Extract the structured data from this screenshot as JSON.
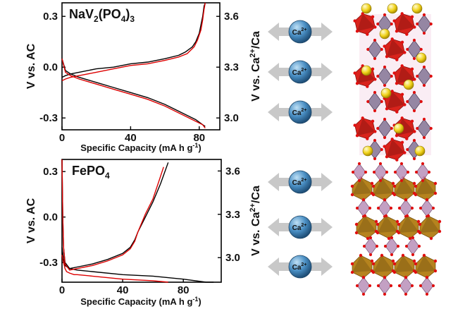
{
  "chart_data": [
    {
      "type": "line",
      "title": "NaV2(PO4)3",
      "title_parts": {
        "base": "NaV",
        "sub1": "2",
        "mid": "(PO",
        "sub2": "4",
        "end": ")",
        "sub3": "3"
      },
      "xlabel": "Specific Capacity (mA h g",
      "xlabel_sup": "-1",
      "xlabel_end": ")",
      "ylabel": "V vs. AC",
      "y2label": "V vs. Ca",
      "y2label_sup": "2+",
      "y2label_end": "/Ca",
      "xlim": [
        0,
        92
      ],
      "ylim": [
        -0.37,
        0.38
      ],
      "y2lim": [
        2.93,
        3.68
      ],
      "xticks": [
        "0",
        "40",
        "80"
      ],
      "xtick_values": [
        0,
        40,
        80
      ],
      "yticks": [
        "0.3",
        "0.0",
        "-0.3"
      ],
      "ytick_values": [
        0.3,
        0.0,
        -0.3
      ],
      "y2ticks": [
        "3.6",
        "3.3",
        "3.0"
      ],
      "y2tick_values": [
        3.6,
        3.3,
        3.0
      ],
      "series": [
        {
          "color": "#000000",
          "x": [
            0,
            2,
            5,
            10,
            20,
            30,
            40,
            50,
            60,
            68,
            72,
            76,
            78,
            80,
            81,
            82,
            82.8,
            83.5
          ],
          "y": [
            -0.06,
            -0.05,
            -0.04,
            -0.03,
            -0.01,
            0.0,
            0.02,
            0.03,
            0.05,
            0.07,
            0.09,
            0.12,
            0.15,
            0.2,
            0.25,
            0.3,
            0.36,
            0.38
          ]
        },
        {
          "color": "#000000",
          "x": [
            0,
            2,
            5,
            10,
            20,
            30,
            40,
            50,
            60,
            70,
            78,
            82,
            83.5
          ],
          "y": [
            0.05,
            -0.02,
            -0.04,
            -0.06,
            -0.09,
            -0.12,
            -0.15,
            -0.18,
            -0.22,
            -0.27,
            -0.31,
            -0.34,
            -0.35
          ]
        },
        {
          "color": "#dd0000",
          "x": [
            0,
            2,
            5,
            10,
            20,
            30,
            40,
            50,
            60,
            68,
            73,
            77,
            79,
            81,
            82,
            82.8,
            83.5
          ],
          "y": [
            -0.08,
            -0.07,
            -0.06,
            -0.05,
            -0.03,
            -0.01,
            0.01,
            0.02,
            0.04,
            0.06,
            0.08,
            0.12,
            0.16,
            0.22,
            0.28,
            0.34,
            0.38
          ]
        },
        {
          "color": "#dd0000",
          "x": [
            0,
            2,
            5,
            10,
            20,
            30,
            40,
            50,
            60,
            70,
            78,
            82,
            83.5
          ],
          "y": [
            0.05,
            -0.03,
            -0.05,
            -0.07,
            -0.1,
            -0.13,
            -0.16,
            -0.19,
            -0.23,
            -0.28,
            -0.32,
            -0.34,
            -0.36
          ]
        }
      ]
    },
    {
      "type": "line",
      "title": "FePO4",
      "title_parts": {
        "base": "FePO",
        "sub1": "4"
      },
      "xlabel": "Specific Capacity (mA h g",
      "xlabel_sup": "-1",
      "xlabel_end": ")",
      "ylabel": "V vs. AC",
      "y2label": "V vs. Ca",
      "y2label_sup": "2+",
      "y2label_end": "/Ca",
      "xlim": [
        0,
        105
      ],
      "ylim": [
        -0.43,
        0.38
      ],
      "y2lim": [
        2.83,
        3.68
      ],
      "xticks": [
        "0",
        "40",
        "80"
      ],
      "xtick_values": [
        0,
        40,
        80
      ],
      "yticks": [
        "0.3",
        "0.0",
        "-0.3"
      ],
      "ytick_values": [
        0.3,
        0.0,
        -0.3
      ],
      "y2ticks": [
        "3.6",
        "3.3",
        "3.0"
      ],
      "y2tick_values": [
        3.6,
        3.3,
        3.0
      ],
      "series": [
        {
          "color": "#000000",
          "x": [
            0,
            0.5,
            1,
            2,
            5,
            10,
            20,
            30,
            40,
            45,
            48,
            50,
            55,
            60,
            65,
            70
          ],
          "y": [
            0.38,
            0.0,
            -0.2,
            -0.3,
            -0.34,
            -0.33,
            -0.31,
            -0.28,
            -0.24,
            -0.2,
            -0.15,
            -0.1,
            0.0,
            0.1,
            0.22,
            0.36
          ]
        },
        {
          "color": "#000000",
          "x": [
            0,
            1,
            2,
            5,
            10,
            20,
            40,
            60,
            80,
            95,
            100
          ],
          "y": [
            -0.2,
            -0.28,
            -0.32,
            -0.34,
            -0.35,
            -0.36,
            -0.38,
            -0.39,
            -0.41,
            -0.43,
            -0.43
          ]
        },
        {
          "color": "#dd0000",
          "x": [
            0,
            0.5,
            1,
            2,
            5,
            10,
            20,
            30,
            40,
            45,
            48,
            50,
            55,
            60,
            64,
            67
          ],
          "y": [
            0.38,
            0.0,
            -0.2,
            -0.31,
            -0.35,
            -0.34,
            -0.32,
            -0.29,
            -0.25,
            -0.21,
            -0.16,
            -0.1,
            0.02,
            0.12,
            0.24,
            0.33
          ]
        },
        {
          "color": "#dd0000",
          "x": [
            0,
            1,
            2,
            3,
            5,
            8,
            10,
            20,
            40,
            60,
            70
          ],
          "y": [
            -0.25,
            -0.3,
            -0.34,
            -0.36,
            -0.37,
            -0.38,
            -0.38,
            -0.39,
            -0.41,
            -0.42,
            -0.43
          ]
        }
      ]
    }
  ],
  "ion_label": {
    "base": "Ca",
    "sup": "2+"
  },
  "colors": {
    "ion_ball": "#3a7fb5",
    "arrow": "#c8c8c8",
    "octahedron_red": "#d8231c",
    "tetra_purple": "#8a7a9a",
    "octahedron_brown": "#b5831e",
    "tetra_mauve": "#b98fb8",
    "ca_sphere": "#f2d51b",
    "oxygen": "#e01010"
  }
}
